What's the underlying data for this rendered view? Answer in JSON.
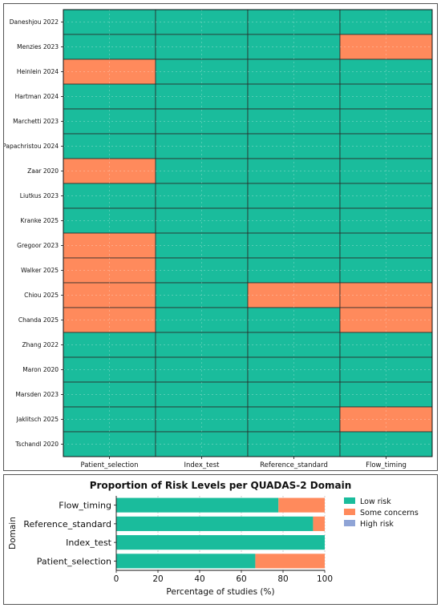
{
  "colors": {
    "low": "#1abc9c",
    "some": "#ff8a5c",
    "high": "#8fa4d6",
    "grid_line": "#2a2a2a"
  },
  "chart_data": [
    {
      "type": "heatmap",
      "title": "",
      "columns": [
        "Patient_selection",
        "Index_test",
        "Reference_standard",
        "Flow_timing"
      ],
      "rows": [
        "Daneshjou 2022",
        "Menzies 2023",
        "Heinlein 2024",
        "Hartman 2024",
        "Marchetti 2023",
        "Papachristou 2024",
        "Zaar 2020",
        "Liutkus 2023",
        "Kranke 2025",
        "Gregoor 2023",
        "Walker 2025",
        "Chiou 2025",
        "Chanda 2025",
        "Zhang 2022",
        "Maron 2020",
        "Marsden 2023",
        "Jaklitsch 2025",
        "Tschandl 2020"
      ],
      "values": [
        [
          "low",
          "low",
          "low",
          "low"
        ],
        [
          "low",
          "low",
          "low",
          "some"
        ],
        [
          "some",
          "low",
          "low",
          "low"
        ],
        [
          "low",
          "low",
          "low",
          "low"
        ],
        [
          "low",
          "low",
          "low",
          "low"
        ],
        [
          "low",
          "low",
          "low",
          "low"
        ],
        [
          "some",
          "low",
          "low",
          "low"
        ],
        [
          "low",
          "low",
          "low",
          "low"
        ],
        [
          "low",
          "low",
          "low",
          "low"
        ],
        [
          "some",
          "low",
          "low",
          "low"
        ],
        [
          "some",
          "low",
          "low",
          "low"
        ],
        [
          "some",
          "low",
          "some",
          "some"
        ],
        [
          "some",
          "low",
          "low",
          "some"
        ],
        [
          "low",
          "low",
          "low",
          "low"
        ],
        [
          "low",
          "low",
          "low",
          "low"
        ],
        [
          "low",
          "low",
          "low",
          "low"
        ],
        [
          "low",
          "low",
          "low",
          "some"
        ],
        [
          "low",
          "low",
          "low",
          "low"
        ]
      ]
    },
    {
      "type": "bar",
      "orientation": "horizontal",
      "stacked": true,
      "title": "Proportion of Risk Levels per QUADAS-2 Domain",
      "xlabel": "Percentage of studies (%)",
      "ylabel": "Domain",
      "categories": [
        "Flow_timing",
        "Reference_standard",
        "Index_test",
        "Patient_selection"
      ],
      "series": [
        {
          "name": "Low risk",
          "values": [
            77.8,
            94.4,
            100,
            66.7
          ]
        },
        {
          "name": "Some concerns",
          "values": [
            22.2,
            5.6,
            0,
            33.3
          ]
        },
        {
          "name": "High risk",
          "values": [
            0,
            0,
            0,
            0
          ]
        }
      ],
      "xlim": [
        0,
        100
      ],
      "xticks": [
        "0",
        "20",
        "40",
        "60",
        "80",
        "100"
      ],
      "grid": true,
      "legend_position": "right"
    }
  ]
}
